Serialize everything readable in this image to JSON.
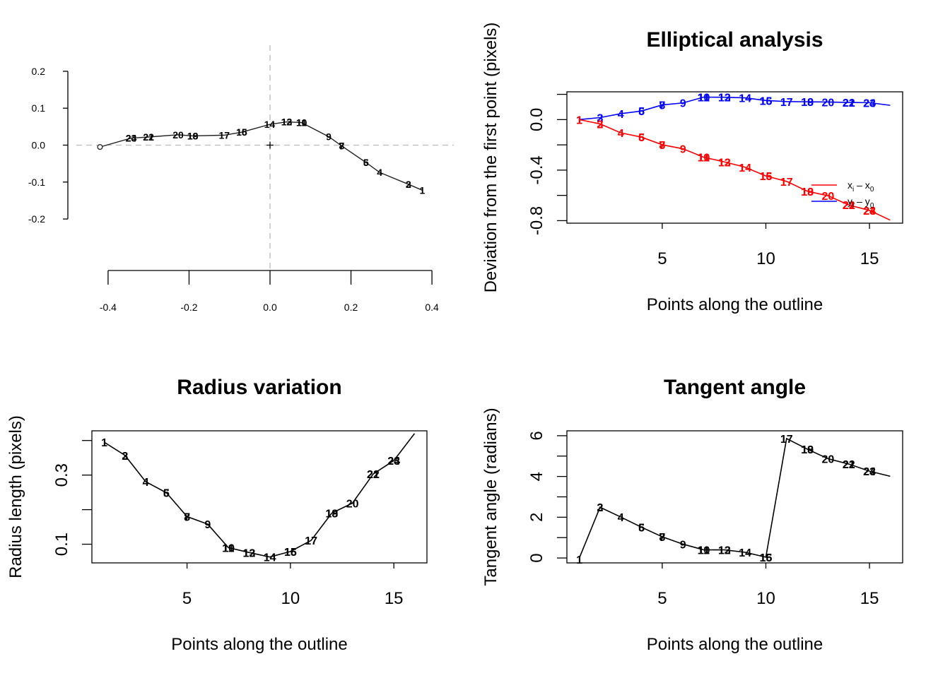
{
  "chart_data": [
    {
      "type": "line",
      "title": "",
      "xlabel": "",
      "ylabel": "",
      "xlim": [
        -0.44,
        0.44
      ],
      "ylim": [
        -0.24,
        0.24
      ],
      "x_ticks": [
        -0.4,
        -0.2,
        0.0,
        0.2,
        0.4
      ],
      "x_tick_labels": [
        "-0.4",
        "-0.2",
        "0.0",
        "0.2",
        "0.4"
      ],
      "y_ticks": [
        -0.2,
        -0.1,
        0.0,
        0.1,
        0.2
      ],
      "y_tick_labels": [
        "-0.2",
        "-0.1",
        "0.0",
        "0.1",
        "0.2"
      ],
      "reference_lines": {
        "vertical": 0.0,
        "horizontal": 0.0,
        "style": "dashed",
        "color": "#bbbbbb"
      },
      "centroid_marker": "+",
      "start_marker": "open-circle",
      "outline": {
        "x": [
          0.376,
          0.342,
          0.271,
          0.237,
          0.177,
          0.145,
          0.078,
          0.041,
          -0.001,
          -0.07,
          -0.113,
          -0.191,
          -0.227,
          -0.3,
          -0.343,
          -0.42
        ],
        "y": [
          -0.122,
          -0.106,
          -0.074,
          -0.047,
          -0.002,
          0.023,
          0.061,
          0.063,
          0.056,
          0.035,
          0.027,
          0.025,
          0.028,
          0.022,
          0.019,
          -0.005
        ]
      },
      "point_labels": [
        {
          "text": "1",
          "x": 0.376,
          "y": -0.122
        },
        {
          "text": "2",
          "x": 0.342,
          "y": -0.106
        },
        {
          "text": "3",
          "x": 0.342,
          "y": -0.106
        },
        {
          "text": "4",
          "x": 0.271,
          "y": -0.074
        },
        {
          "text": "5",
          "x": 0.237,
          "y": -0.047
        },
        {
          "text": "6",
          "x": 0.237,
          "y": -0.047
        },
        {
          "text": "7",
          "x": 0.177,
          "y": -0.002
        },
        {
          "text": "8",
          "x": 0.177,
          "y": -0.002
        },
        {
          "text": "9",
          "x": 0.145,
          "y": 0.023
        },
        {
          "text": "10",
          "x": 0.078,
          "y": 0.061
        },
        {
          "text": "11",
          "x": 0.078,
          "y": 0.061
        },
        {
          "text": "12",
          "x": 0.041,
          "y": 0.063
        },
        {
          "text": "13",
          "x": 0.041,
          "y": 0.063
        },
        {
          "text": "14",
          "x": -0.001,
          "y": 0.056
        },
        {
          "text": "15",
          "x": -0.07,
          "y": 0.035
        },
        {
          "text": "16",
          "x": -0.07,
          "y": 0.035
        },
        {
          "text": "17",
          "x": -0.113,
          "y": 0.027
        },
        {
          "text": "18",
          "x": -0.191,
          "y": 0.025
        },
        {
          "text": "19",
          "x": -0.191,
          "y": 0.025
        },
        {
          "text": "20",
          "x": -0.227,
          "y": 0.028
        },
        {
          "text": "21",
          "x": -0.3,
          "y": 0.022
        },
        {
          "text": "22",
          "x": -0.3,
          "y": 0.022
        },
        {
          "text": "23",
          "x": -0.343,
          "y": 0.019
        },
        {
          "text": "24",
          "x": -0.343,
          "y": 0.019
        }
      ]
    },
    {
      "type": "line",
      "title": "Elliptical analysis",
      "xlabel": "Points along the outline",
      "ylabel": "Deviation from the first point (pixels)",
      "xlim": [
        0.4,
        16.6
      ],
      "ylim": [
        -0.82,
        0.22
      ],
      "x_ticks": [
        5,
        10,
        15
      ],
      "x_tick_labels": [
        "5",
        "10",
        "15"
      ],
      "y_ticks": [
        -0.8,
        -0.4,
        0.0
      ],
      "y_tick_labels": [
        "-0.8",
        "-0.4",
        "0.0"
      ],
      "y_minor_ticks": [
        -0.6,
        -0.2,
        0.2
      ],
      "legend": {
        "placement": "right",
        "entries": [
          {
            "color": "#ff0000",
            "label": "x",
            "subscript": "i",
            "rest": " – x",
            "rest_subscript": "0"
          },
          {
            "color": "#0000ff",
            "label": "y",
            "subscript": "i",
            "rest": " – y",
            "rest_subscript": "0"
          }
        ]
      },
      "series": [
        {
          "color": "#0000ff",
          "x": [
            1,
            2,
            3,
            4,
            5,
            6,
            7,
            8,
            9,
            10,
            11,
            12,
            13,
            14,
            15,
            16
          ],
          "y": [
            0.0,
            0.016,
            0.047,
            0.068,
            0.116,
            0.132,
            0.178,
            0.177,
            0.172,
            0.151,
            0.143,
            0.141,
            0.139,
            0.136,
            0.134,
            0.113
          ],
          "labels": [
            {
              "text": "1",
              "x": 1,
              "y": 0.0
            },
            {
              "text": "2",
              "x": 2,
              "y": 0.016
            },
            {
              "text": "3",
              "x": 2,
              "y": 0.016
            },
            {
              "text": "4",
              "x": 3,
              "y": 0.047
            },
            {
              "text": "5",
              "x": 4,
              "y": 0.068
            },
            {
              "text": "6",
              "x": 4,
              "y": 0.068
            },
            {
              "text": "7",
              "x": 5,
              "y": 0.116
            },
            {
              "text": "8",
              "x": 5,
              "y": 0.116
            },
            {
              "text": "9",
              "x": 6,
              "y": 0.132
            },
            {
              "text": "10",
              "x": 7,
              "y": 0.178
            },
            {
              "text": "11",
              "x": 7,
              "y": 0.178
            },
            {
              "text": "12",
              "x": 8,
              "y": 0.177
            },
            {
              "text": "13",
              "x": 8,
              "y": 0.177
            },
            {
              "text": "14",
              "x": 9,
              "y": 0.172
            },
            {
              "text": "15",
              "x": 10,
              "y": 0.151
            },
            {
              "text": "16",
              "x": 10,
              "y": 0.151
            },
            {
              "text": "17",
              "x": 11,
              "y": 0.143
            },
            {
              "text": "18",
              "x": 12,
              "y": 0.141
            },
            {
              "text": "19",
              "x": 12,
              "y": 0.141
            },
            {
              "text": "20",
              "x": 13,
              "y": 0.139
            },
            {
              "text": "21",
              "x": 14,
              "y": 0.136
            },
            {
              "text": "22",
              "x": 14,
              "y": 0.136
            },
            {
              "text": "23",
              "x": 15,
              "y": 0.134
            },
            {
              "text": "24",
              "x": 15,
              "y": 0.134
            }
          ]
        },
        {
          "color": "#ff0000",
          "x": [
            1,
            2,
            3,
            4,
            5,
            6,
            7,
            8,
            9,
            10,
            11,
            12,
            13,
            14,
            15,
            16
          ],
          "y": [
            0.0,
            -0.034,
            -0.105,
            -0.139,
            -0.199,
            -0.231,
            -0.298,
            -0.335,
            -0.377,
            -0.446,
            -0.489,
            -0.567,
            -0.603,
            -0.676,
            -0.719,
            -0.796
          ],
          "labels": [
            {
              "text": "1",
              "x": 1,
              "y": 0.0
            },
            {
              "text": "2",
              "x": 2,
              "y": -0.034
            },
            {
              "text": "3",
              "x": 2,
              "y": -0.034
            },
            {
              "text": "4",
              "x": 3,
              "y": -0.105
            },
            {
              "text": "5",
              "x": 4,
              "y": -0.139
            },
            {
              "text": "6",
              "x": 4,
              "y": -0.139
            },
            {
              "text": "7",
              "x": 5,
              "y": -0.199
            },
            {
              "text": "8",
              "x": 5,
              "y": -0.199
            },
            {
              "text": "9",
              "x": 6,
              "y": -0.231
            },
            {
              "text": "10",
              "x": 7,
              "y": -0.298
            },
            {
              "text": "11",
              "x": 7,
              "y": -0.298
            },
            {
              "text": "12",
              "x": 8,
              "y": -0.335
            },
            {
              "text": "13",
              "x": 8,
              "y": -0.335
            },
            {
              "text": "14",
              "x": 9,
              "y": -0.377
            },
            {
              "text": "15",
              "x": 10,
              "y": -0.446
            },
            {
              "text": "16",
              "x": 10,
              "y": -0.446
            },
            {
              "text": "17",
              "x": 11,
              "y": -0.489
            },
            {
              "text": "18",
              "x": 12,
              "y": -0.567
            },
            {
              "text": "19",
              "x": 12,
              "y": -0.567
            },
            {
              "text": "20",
              "x": 13,
              "y": -0.603
            },
            {
              "text": "21",
              "x": 14,
              "y": -0.676
            },
            {
              "text": "22",
              "x": 14,
              "y": -0.676
            },
            {
              "text": "23",
              "x": 15,
              "y": -0.719
            },
            {
              "text": "24",
              "x": 15,
              "y": -0.719
            }
          ]
        }
      ]
    },
    {
      "type": "line",
      "title": "Radius variation",
      "xlabel": "Points along the outline",
      "ylabel": "Radius length (pixels)",
      "xlim": [
        0.4,
        16.6
      ],
      "ylim": [
        0.046,
        0.428
      ],
      "x_ticks": [
        5,
        10,
        15
      ],
      "x_tick_labels": [
        "5",
        "10",
        "15"
      ],
      "y_ticks": [
        0.1,
        0.3
      ],
      "y_tick_labels": [
        "0.1",
        "0.3"
      ],
      "y_minor_ticks": [
        0.2,
        0.4
      ],
      "series": [
        {
          "color": "#000000",
          "x": [
            1,
            2,
            3,
            4,
            5,
            6,
            7,
            8,
            9,
            10,
            11,
            12,
            13,
            14,
            15,
            16
          ],
          "y": [
            0.395,
            0.357,
            0.281,
            0.249,
            0.18,
            0.158,
            0.09,
            0.076,
            0.063,
            0.079,
            0.111,
            0.19,
            0.219,
            0.303,
            0.342,
            0.42
          ],
          "labels": [
            {
              "text": "1",
              "x": 1,
              "y": 0.395
            },
            {
              "text": "2",
              "x": 2,
              "y": 0.357
            },
            {
              "text": "3",
              "x": 2,
              "y": 0.357
            },
            {
              "text": "4",
              "x": 3,
              "y": 0.281
            },
            {
              "text": "5",
              "x": 4,
              "y": 0.249
            },
            {
              "text": "6",
              "x": 4,
              "y": 0.249
            },
            {
              "text": "7",
              "x": 5,
              "y": 0.18
            },
            {
              "text": "8",
              "x": 5,
              "y": 0.18
            },
            {
              "text": "9",
              "x": 6,
              "y": 0.158
            },
            {
              "text": "10",
              "x": 7,
              "y": 0.09
            },
            {
              "text": "11",
              "x": 7,
              "y": 0.09
            },
            {
              "text": "12",
              "x": 8,
              "y": 0.076
            },
            {
              "text": "13",
              "x": 8,
              "y": 0.076
            },
            {
              "text": "14",
              "x": 9,
              "y": 0.063
            },
            {
              "text": "15",
              "x": 10,
              "y": 0.079
            },
            {
              "text": "16",
              "x": 10,
              "y": 0.079
            },
            {
              "text": "17",
              "x": 11,
              "y": 0.111
            },
            {
              "text": "18",
              "x": 12,
              "y": 0.19
            },
            {
              "text": "19",
              "x": 12,
              "y": 0.19
            },
            {
              "text": "20",
              "x": 13,
              "y": 0.219
            },
            {
              "text": "21",
              "x": 14,
              "y": 0.303
            },
            {
              "text": "22",
              "x": 14,
              "y": 0.303
            },
            {
              "text": "23",
              "x": 15,
              "y": 0.342
            },
            {
              "text": "24",
              "x": 15,
              "y": 0.342
            }
          ]
        }
      ]
    },
    {
      "type": "line",
      "title": "Tangent angle",
      "xlabel": "Points along the outline",
      "ylabel": "Tangent angle (radians)",
      "xlim": [
        0.4,
        16.6
      ],
      "ylim": [
        -0.24,
        6.24
      ],
      "x_ticks": [
        5,
        10,
        15
      ],
      "x_tick_labels": [
        "5",
        "10",
        "15"
      ],
      "y_ticks": [
        0,
        2,
        4,
        6
      ],
      "y_tick_labels": [
        "0",
        "2",
        "4",
        "6"
      ],
      "y_minor_ticks": [
        1,
        3,
        5
      ],
      "series": [
        {
          "color": "#000000",
          "x": [
            1,
            2,
            3,
            4,
            5,
            6,
            7,
            8,
            9,
            10,
            11,
            12,
            13,
            14,
            15,
            16
          ],
          "y": [
            0.0,
            2.49,
            2.01,
            1.51,
            1.04,
            0.68,
            0.4,
            0.4,
            0.28,
            0.04,
            5.86,
            5.34,
            4.87,
            4.61,
            4.26,
            4.01
          ],
          "labels": [
            {
              "text": "1",
              "x": 1,
              "y": -0.06
            },
            {
              "text": "2",
              "x": 2,
              "y": 2.49
            },
            {
              "text": "3",
              "x": 2,
              "y": 2.49
            },
            {
              "text": "4",
              "x": 3,
              "y": 2.01
            },
            {
              "text": "5",
              "x": 4,
              "y": 1.51
            },
            {
              "text": "6",
              "x": 4,
              "y": 1.51
            },
            {
              "text": "7",
              "x": 5,
              "y": 1.04
            },
            {
              "text": "8",
              "x": 5,
              "y": 1.04
            },
            {
              "text": "9",
              "x": 6,
              "y": 0.68
            },
            {
              "text": "10",
              "x": 7,
              "y": 0.4
            },
            {
              "text": "11",
              "x": 7,
              "y": 0.4
            },
            {
              "text": "12",
              "x": 8,
              "y": 0.4
            },
            {
              "text": "13",
              "x": 8,
              "y": 0.4
            },
            {
              "text": "14",
              "x": 9,
              "y": 0.28
            },
            {
              "text": "15",
              "x": 10,
              "y": 0.04
            },
            {
              "text": "16",
              "x": 10,
              "y": 0.04
            },
            {
              "text": "17",
              "x": 11,
              "y": 5.86
            },
            {
              "text": "18",
              "x": 12,
              "y": 5.34
            },
            {
              "text": "19",
              "x": 12,
              "y": 5.34
            },
            {
              "text": "20",
              "x": 13,
              "y": 4.87
            },
            {
              "text": "21",
              "x": 14,
              "y": 4.61
            },
            {
              "text": "22",
              "x": 14,
              "y": 4.61
            },
            {
              "text": "23",
              "x": 15,
              "y": 4.26
            },
            {
              "text": "24",
              "x": 15,
              "y": 4.26
            }
          ]
        }
      ]
    }
  ]
}
